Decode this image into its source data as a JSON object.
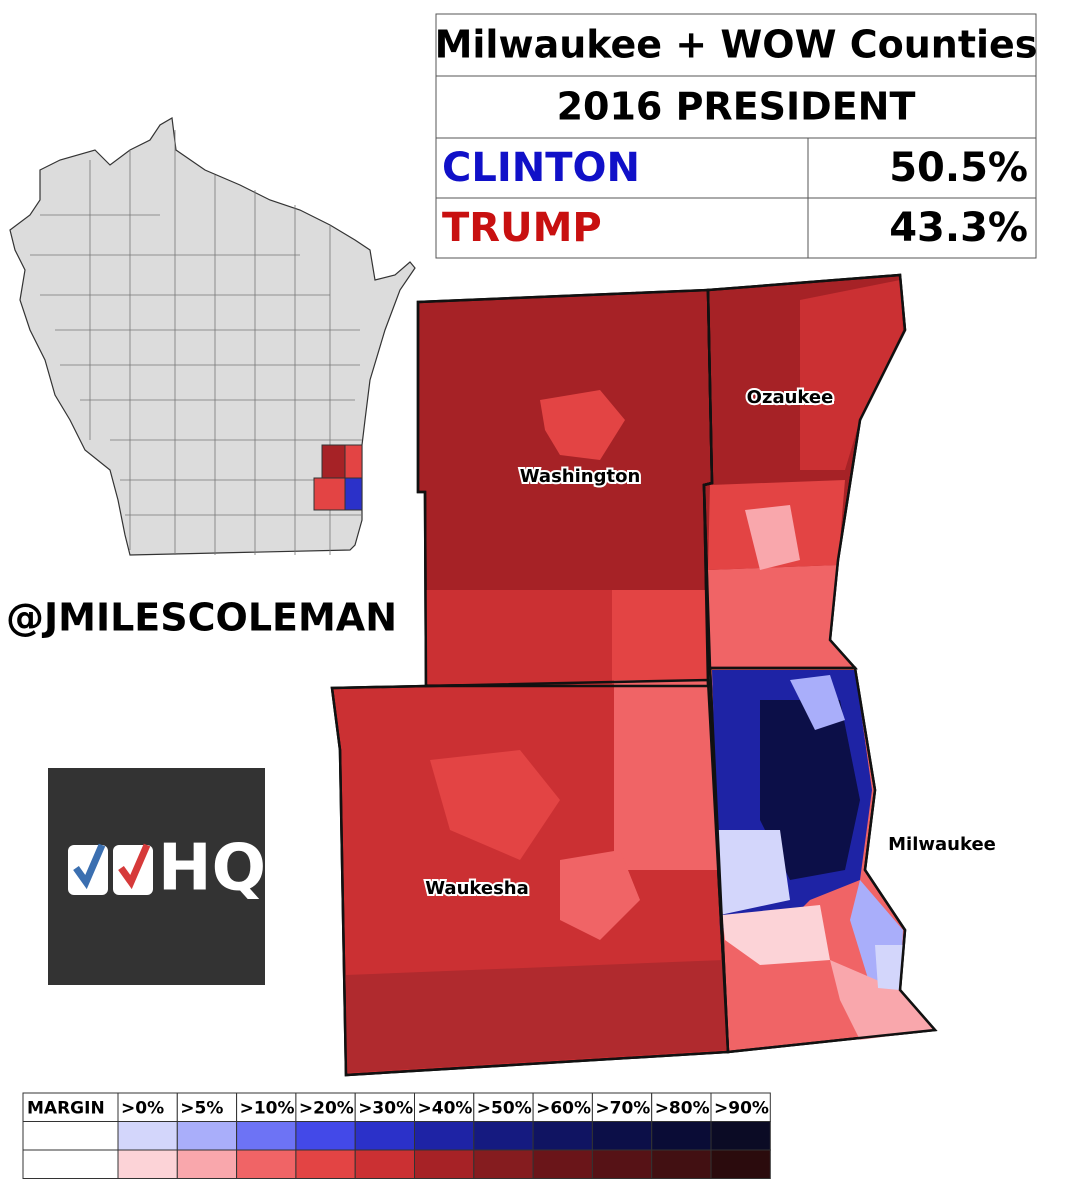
{
  "header": {
    "title": "Milwaukee + WOW Counties",
    "subtitle": "2016 PRESIDENT"
  },
  "results": [
    {
      "candidate": "CLINTON",
      "share": "50.5%",
      "color": "#1010c8"
    },
    {
      "candidate": "TRUMP",
      "share": "43.3%",
      "color": "#c81010"
    }
  ],
  "counties": [
    {
      "label": "Washington",
      "color": "#a62226"
    },
    {
      "label": "Ozaukee",
      "color": "#a62226"
    },
    {
      "label": "Waukesha",
      "color": "#cb3033"
    },
    {
      "label": "Milwaukee",
      "color": "#f06466"
    }
  ],
  "handle": "@JMILESCOLEMAN",
  "logo": "HQ",
  "legend": {
    "title": "MARGIN",
    "bins": [
      ">0%",
      ">5%",
      ">10%",
      ">20%",
      ">30%",
      ">40%",
      ">50%",
      ">60%",
      ">70%",
      ">80%",
      ">90%"
    ],
    "clinton_colors": [
      "#d3d6fb",
      "#a9aefa",
      "#6d73f5",
      "#4349e8",
      "#2b31c9",
      "#1e23a5",
      "#151a80",
      "#101462",
      "#0c0f48",
      "#0a0c36",
      "#0b0b25"
    ],
    "trump_colors": [
      "#fcd3d7",
      "#f9a7ac",
      "#f06466",
      "#e34444",
      "#cb3033",
      "#a62226",
      "#851c1f",
      "#6a1519",
      "#561216",
      "#421012",
      "#2b0b0d"
    ]
  }
}
